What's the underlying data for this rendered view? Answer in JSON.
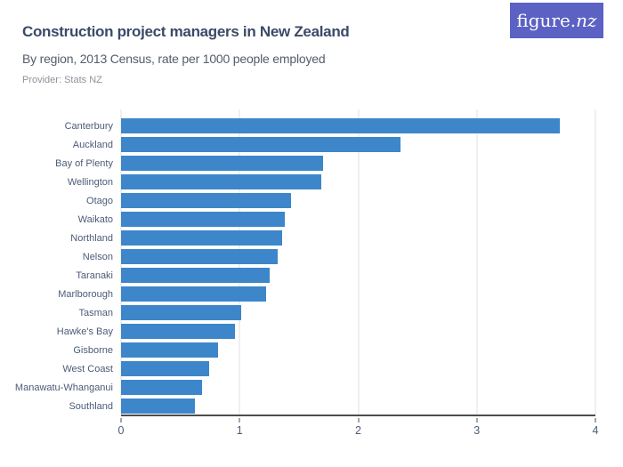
{
  "header": {
    "title": "Construction project managers in New Zealand",
    "subtitle": "By region, 2013 Census, rate per 1000 people employed",
    "provider": "Provider: Stats NZ",
    "logo_text_main": "figure.",
    "logo_text_suffix": "nz"
  },
  "colors": {
    "bar": "#3d86c9",
    "logo_bg": "#5b62c3",
    "title_text": "#3b4a68",
    "subtitle_text": "#535d6b",
    "provider_text": "#8d939c",
    "axis_label_text": "#4c5b78",
    "gridline": "#e2e2e2",
    "axis_line": "#4c4c4c",
    "background": "#ffffff"
  },
  "chart_data": {
    "type": "bar",
    "orientation": "horizontal",
    "title": "Construction project managers in New Zealand",
    "subtitle": "By region, 2013 Census, rate per 1000 people employed",
    "xlabel": "",
    "ylabel": "",
    "xlim": [
      0,
      4
    ],
    "xticks": [
      0,
      1,
      2,
      3,
      4
    ],
    "grid": true,
    "legend": false,
    "categories": [
      "Canterbury",
      "Auckland",
      "Bay of Plenty",
      "Wellington",
      "Otago",
      "Waikato",
      "Northland",
      "Nelson",
      "Taranaki",
      "Marlborough",
      "Tasman",
      "Hawke's Bay",
      "Gisborne",
      "West Coast",
      "Manawatu-Whanganui",
      "Southland"
    ],
    "values": [
      3.7,
      2.36,
      1.7,
      1.69,
      1.43,
      1.38,
      1.36,
      1.32,
      1.25,
      1.22,
      1.01,
      0.96,
      0.82,
      0.74,
      0.68,
      0.62
    ]
  }
}
